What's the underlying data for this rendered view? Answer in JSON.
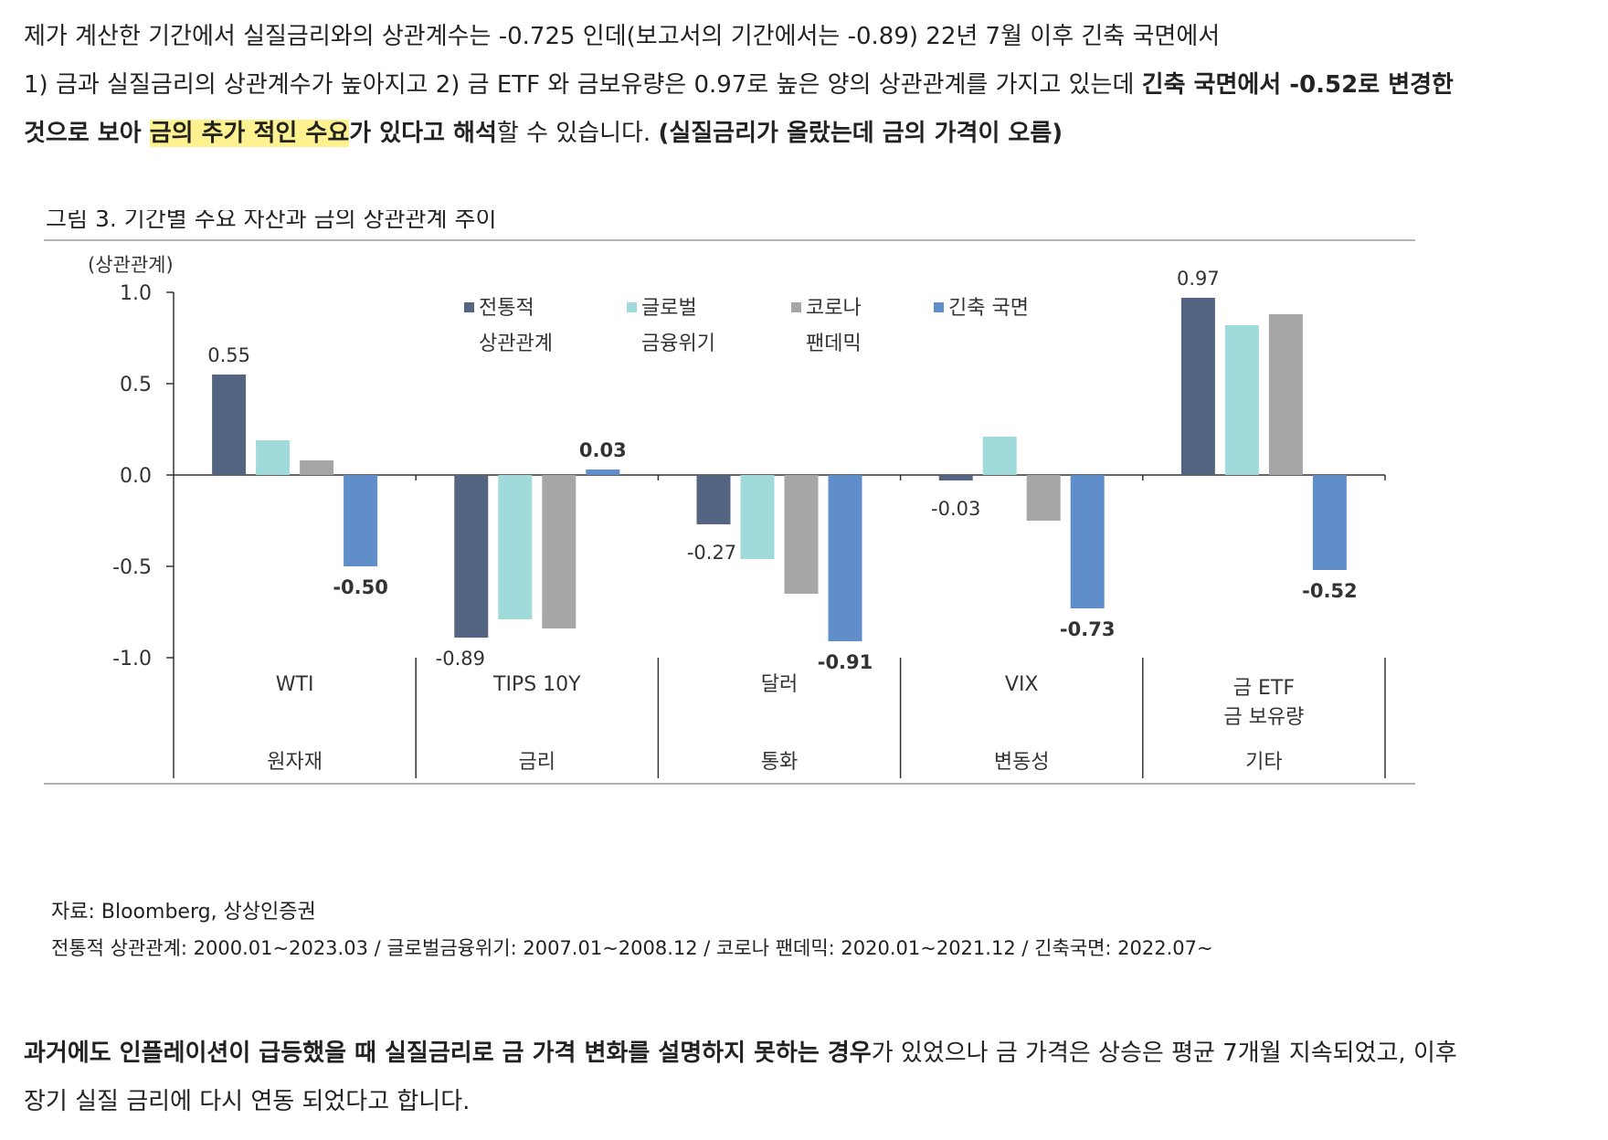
{
  "intro": {
    "line1": "제가 계산한 기간에서 실질금리와의 상관계수는 -0.725 인데(보고서의 기간에서는 -0.89) 22년 7월 이후 긴축 국면에서",
    "line2_a": "1) 금과 실질금리의 상관계수가 높아지고 2) 금 ETF 와 금보유량은 0.97로 높은 양의 상관관계를 가지고 있는데 ",
    "line2_b": "긴축 국면에서 -0.52로 변경한",
    "line3_a": "것으로 보아 ",
    "line3_hl": "금의 추가 적인 수요",
    "line3_b": "가 있다고 해석",
    "line3_c": "할 수 있습니다. ",
    "line3_d": "(실질금리가 올랐는데 금의 가격이 오름)"
  },
  "chart_data": {
    "type": "bar",
    "title": "그림 3. 기간별 주요 자산과 금의 상관관계 추이",
    "ylabel": "(상관관계)",
    "ylim": [
      -1.0,
      1.0
    ],
    "yticks": [
      "1.0",
      "0.5",
      "0.0",
      "-0.5",
      "-1.0"
    ],
    "ytick_values": [
      1.0,
      0.5,
      0.0,
      -0.5,
      -1.0
    ],
    "categories": [
      "WTI",
      "TIPS 10Y",
      "달러",
      "VIX",
      "금 ETF\n금 보유량"
    ],
    "groups": [
      "원자재",
      "금리",
      "통화",
      "변동성",
      "기타"
    ],
    "series": [
      {
        "name": "전통적\n상관관계",
        "color": "#536580",
        "values": [
          0.55,
          -0.89,
          -0.27,
          -0.03,
          0.97
        ]
      },
      {
        "name": "글로벌\n금융위기",
        "color": "#a0dadb",
        "values": [
          0.19,
          -0.79,
          -0.46,
          0.21,
          0.82
        ]
      },
      {
        "name": "코로나\n팬데믹",
        "color": "#a6a6a6",
        "values": [
          0.08,
          -0.84,
          -0.65,
          -0.25,
          0.88
        ]
      },
      {
        "name": "긴축 국면",
        "color": "#5f8ecb",
        "values": [
          -0.5,
          0.03,
          -0.91,
          -0.73,
          -0.52
        ]
      }
    ],
    "data_labels": [
      {
        "series": 0,
        "index": 0,
        "text": "0.55"
      },
      {
        "series": 3,
        "index": 0,
        "text": "-0.50"
      },
      {
        "series": 0,
        "index": 1,
        "text": "-0.89"
      },
      {
        "series": 3,
        "index": 1,
        "text": "0.03"
      },
      {
        "series": 0,
        "index": 2,
        "text": "-0.27"
      },
      {
        "series": 3,
        "index": 2,
        "text": "-0.91"
      },
      {
        "series": 0,
        "index": 3,
        "text": "-0.03"
      },
      {
        "series": 3,
        "index": 3,
        "text": "-0.73"
      },
      {
        "series": 0,
        "index": 4,
        "text": "0.97"
      },
      {
        "series": 3,
        "index": 4,
        "text": "-0.52"
      }
    ],
    "legend_position": "top"
  },
  "source": {
    "line1": "자료: Bloomberg,  상상인증권",
    "line2": "전통적  상관관계: 2000.01~2023.03 /  글로벌금융위기: 2007.01~2008.12 /  코로나  팬데믹: 2020.01~2021.12 /  긴축국면: 2022.07~"
  },
  "outro": {
    "line1_a": "과거에도 인플레이션이 급등했을 때 실질금리로 금 가격 변화를 설명하지 못하는 경우",
    "line1_b": "가 있었으나 금 가격은 상승은 평균 7개월 지속되었고, 이후",
    "line2": "장기 실질 금리에 다시 연동 되었다고 합니다."
  }
}
